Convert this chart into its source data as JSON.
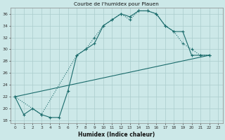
{
  "title": "Courbe de l'humidex pour Plauen",
  "xlabel": "Humidex (Indice chaleur)",
  "bg_color": "#cce8e8",
  "line_color": "#1a6b6b",
  "xlim": [
    -0.5,
    23.5
  ],
  "ylim": [
    17.5,
    37
  ],
  "yticks": [
    18,
    20,
    22,
    24,
    26,
    28,
    30,
    32,
    34,
    36
  ],
  "xticks": [
    0,
    1,
    2,
    3,
    4,
    5,
    6,
    7,
    8,
    9,
    10,
    11,
    12,
    13,
    14,
    15,
    16,
    17,
    18,
    19,
    20,
    21,
    22,
    23
  ],
  "series1_x": [
    0,
    1,
    2,
    3,
    4,
    5,
    6,
    7,
    8,
    9,
    10,
    11,
    12,
    13,
    14,
    15,
    16,
    17,
    18,
    19,
    20,
    21,
    22
  ],
  "series1_y": [
    22,
    19,
    20,
    19,
    18.5,
    18.5,
    23,
    29,
    30,
    31,
    34,
    35,
    36,
    35.5,
    36.5,
    36.5,
    36,
    34,
    33,
    33,
    29,
    29,
    29
  ],
  "series2_x": [
    0,
    3,
    7,
    8,
    9,
    10,
    11,
    12,
    13,
    14,
    15,
    16,
    17,
    18,
    19,
    20,
    21,
    22
  ],
  "series2_y": [
    22,
    19,
    29,
    30,
    32,
    34,
    35,
    36,
    35,
    36.5,
    36.5,
    36,
    34,
    33,
    31,
    30,
    29,
    29
  ],
  "series3_x": [
    0,
    22
  ],
  "series3_y": [
    22,
    29
  ]
}
